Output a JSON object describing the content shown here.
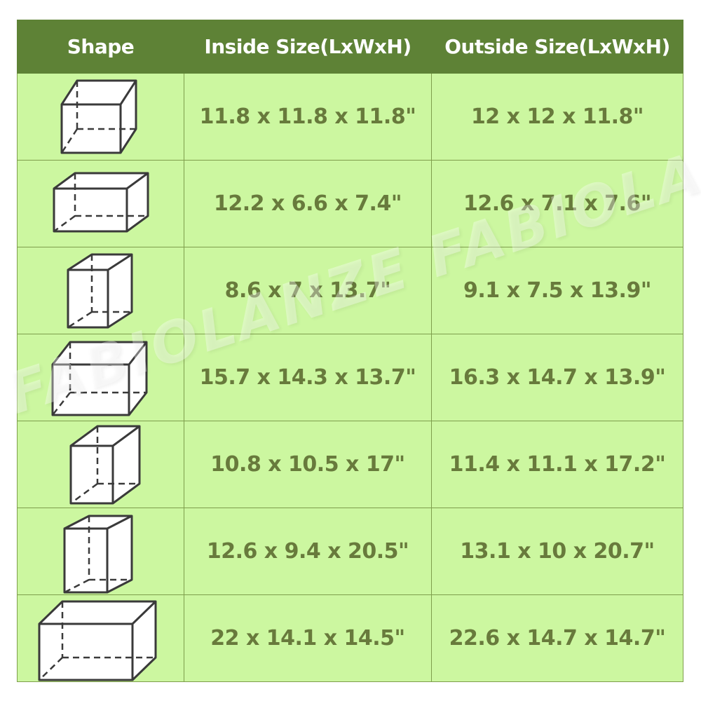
{
  "table": {
    "headers": [
      "Shape",
      "Inside Size(LxWxH)",
      "Outside Size(LxWxH)"
    ],
    "rows": [
      {
        "shape_icon": "cube-outline-icon",
        "inside": "11.8 x 11.8 x 11.8\"",
        "outside": "12 x 12 x 11.8\""
      },
      {
        "shape_icon": "box-outline-icon",
        "inside": "12.2 x 6.6 x 7.4\"",
        "outside": "12.6 x 7.1 x 7.6\""
      },
      {
        "shape_icon": "box-outline-icon",
        "inside": "8.6 x 7 x 13.7\"",
        "outside": "9.1 x 7.5 x 13.9\""
      },
      {
        "shape_icon": "box-outline-icon",
        "inside": "15.7 x 14.3 x 13.7\"",
        "outside": "16.3 x 14.7 x 13.9\""
      },
      {
        "shape_icon": "box-outline-icon",
        "inside": "10.8 x 10.5 x 17\"",
        "outside": "11.4 x 11.1 x 17.2\""
      },
      {
        "shape_icon": "box-outline-icon",
        "inside": "12.6 x 9.4 x 20.5\"",
        "outside": "13.1 x 10 x 20.7\""
      },
      {
        "shape_icon": "box-outline-icon",
        "inside": "22 x 14.1 x 14.5\"",
        "outside": "22.6 x 14.7 x 14.7\""
      }
    ]
  },
  "watermark": "FABIOLANZE FABIOLANZE FABIOLANZE",
  "colors": {
    "header_bg": "#5e8236",
    "row_bg": "#ccf7a0",
    "text": "#687a3c",
    "border": "#7e9e4c"
  }
}
